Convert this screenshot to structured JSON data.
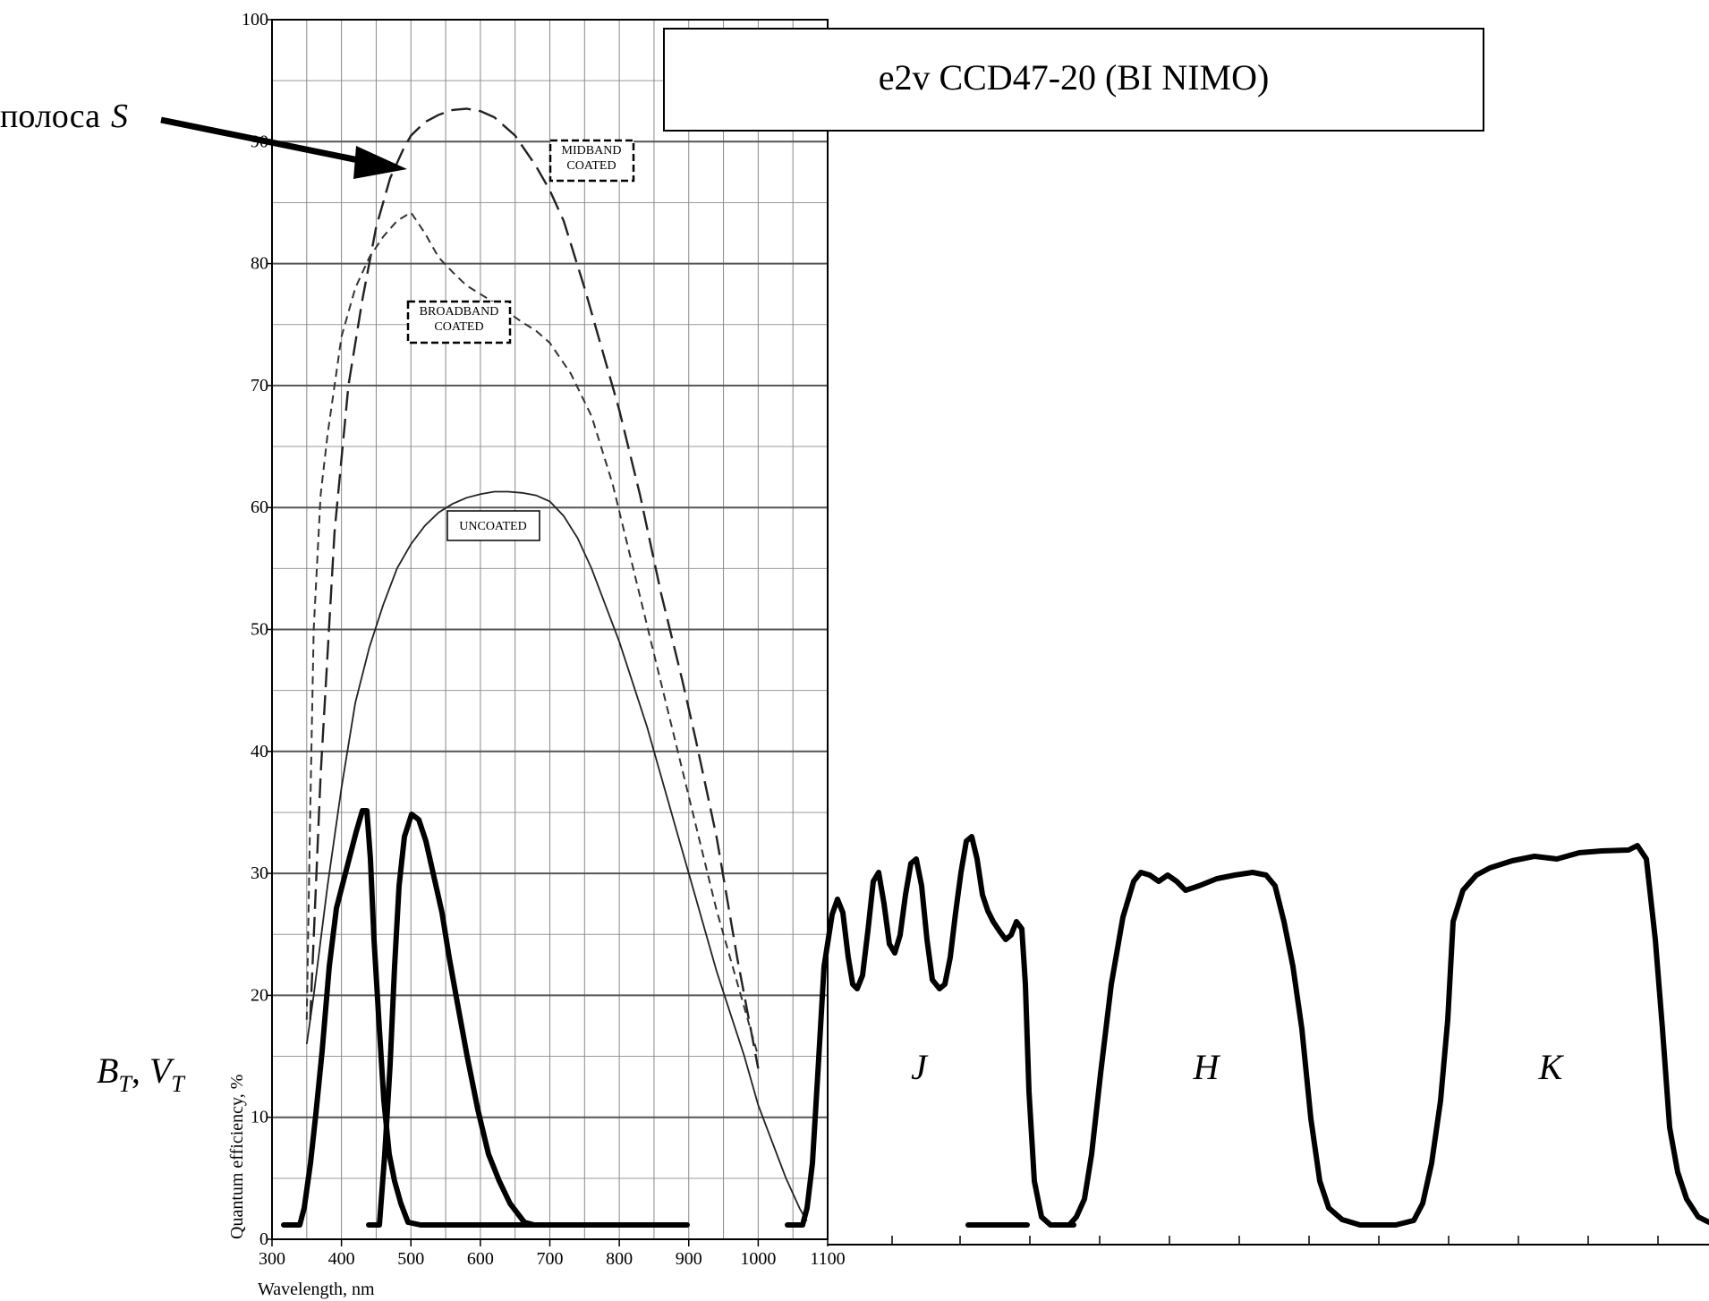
{
  "chart_data": {
    "type": "line",
    "title": "e2v CCD47-20 (BI NIMO)",
    "xlabel": "Wavelength, nm",
    "ylabel": "Quantum efficiency, %",
    "xlim": [
      300,
      1100
    ],
    "ylim": [
      0,
      100
    ],
    "x_ticks": [
      300,
      400,
      500,
      600,
      700,
      800,
      900,
      1000,
      1100
    ],
    "y_ticks": [
      0,
      10,
      20,
      30,
      40,
      50,
      60,
      70,
      80,
      90,
      100
    ],
    "grid": true,
    "series": [
      {
        "name": "MIDBAND COATED",
        "style": "dashed",
        "x": [
          355,
          370,
          390,
          410,
          430,
          450,
          470,
          490,
          500,
          520,
          540,
          560,
          580,
          600,
          620,
          650,
          680,
          700,
          720,
          750,
          780,
          800,
          830,
          860,
          890,
          910,
          940,
          970,
          1000
        ],
        "y": [
          18,
          38,
          58,
          70,
          77,
          83,
          87,
          89.5,
          90.5,
          91.6,
          92.2,
          92.6,
          92.7,
          92.5,
          92,
          90.5,
          88,
          86,
          83.5,
          78,
          72,
          68,
          61,
          53,
          46,
          41,
          33,
          23,
          14
        ]
      },
      {
        "name": "BROADBAND COATED",
        "style": "dashed",
        "x": [
          350,
          355,
          360,
          370,
          380,
          390,
          400,
          420,
          440,
          460,
          480,
          500,
          520,
          540,
          560,
          580,
          600,
          620,
          640,
          660,
          680,
          700,
          730,
          760,
          790,
          820,
          850,
          880,
          910,
          940,
          970,
          1000
        ],
        "y": [
          18,
          35,
          50,
          61,
          66,
          70,
          74,
          78,
          80.5,
          82.2,
          83.5,
          84.2,
          82.5,
          80.5,
          79.3,
          78.2,
          77.5,
          76.8,
          76,
          75.2,
          74.5,
          73.5,
          71,
          67.5,
          62,
          55,
          48,
          41,
          34,
          27,
          21,
          15
        ]
      },
      {
        "name": "UNCOATED",
        "style": "solid",
        "x": [
          350,
          360,
          380,
          400,
          420,
          440,
          460,
          480,
          500,
          520,
          540,
          560,
          580,
          600,
          620,
          640,
          660,
          680,
          700,
          720,
          740,
          760,
          780,
          800,
          820,
          840,
          860,
          880,
          900,
          920,
          940,
          960,
          980,
          1000,
          1020,
          1040,
          1060,
          1070
        ],
        "y": [
          16,
          20,
          29,
          37,
          44,
          48.5,
          52,
          55,
          57,
          58.5,
          59.6,
          60.3,
          60.8,
          61.1,
          61.3,
          61.3,
          61.2,
          61,
          60.5,
          59.3,
          57.5,
          55,
          52,
          49,
          45.5,
          42,
          38,
          34,
          30,
          26,
          22,
          18.5,
          15,
          11,
          8,
          5,
          2.5,
          1.5
        ]
      }
    ],
    "annotations": {
      "midband_label": "MIDBAND COATED",
      "broadband_label": "BROADBAND COATED",
      "uncoated_label": "UNCOATED",
      "s_band_text": "полоса",
      "s_band_letter": "S",
      "bv_b": "B",
      "bv_v": "V",
      "bv_sub": "T",
      "bv_sep": ", ",
      "band_j": "J",
      "band_h": "H",
      "band_k": "K"
    }
  }
}
